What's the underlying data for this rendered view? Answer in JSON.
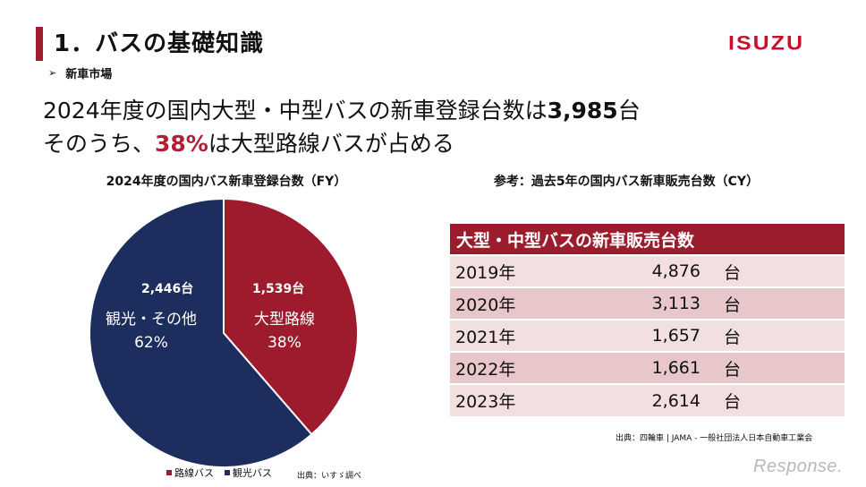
{
  "header": {
    "title": "1．バスの基礎知識",
    "logo": "ISUZU",
    "subheading": "新車市場",
    "subheading_icon": "arrow-right-icon"
  },
  "headline": {
    "line1_prefix": "2024年度の国内大型・中型バスの新車登録台数は",
    "line1_value": "3,985",
    "line1_suffix": "台",
    "line2_prefix": "そのうち、",
    "line2_value": "38%",
    "line2_suffix": "は大型路線バスが占める"
  },
  "colors": {
    "accent": "#a01c2e",
    "route_bus": "#9e1b2e",
    "tour_bus": "#1c2d5e"
  },
  "chart_data": [
    {
      "type": "pie",
      "title": "2024年度の国内バス新車登録台数（FY）",
      "slices": [
        {
          "name": "大型路線",
          "value": 1539,
          "value_label": "1,539台",
          "percent": 38,
          "percent_label": "38%",
          "legend": "路線バス",
          "color": "#9e1b2e"
        },
        {
          "name": "観光・その他",
          "value": 2446,
          "value_label": "2,446台",
          "percent": 62,
          "percent_label": "62%",
          "legend": "観光バス",
          "color": "#1c2d5e"
        }
      ],
      "legend_position": "bottom",
      "source": "出典：いすゞ調べ"
    },
    {
      "type": "table",
      "title": "参考：過去5年の国内バス新車販売台数（CY）",
      "header": "大型・中型バスの新車販売台数",
      "unit": "台",
      "rows": [
        {
          "year": "2019年",
          "value": "4,876"
        },
        {
          "year": "2020年",
          "value": "3,113"
        },
        {
          "year": "2021年",
          "value": "1,657"
        },
        {
          "year": "2022年",
          "value": "1,661"
        },
        {
          "year": "2023年",
          "value": "2,614"
        }
      ],
      "source": "出典：四輪車 | JAMA - 一般社団法人日本自動車工業会"
    }
  ],
  "watermark": "Response."
}
